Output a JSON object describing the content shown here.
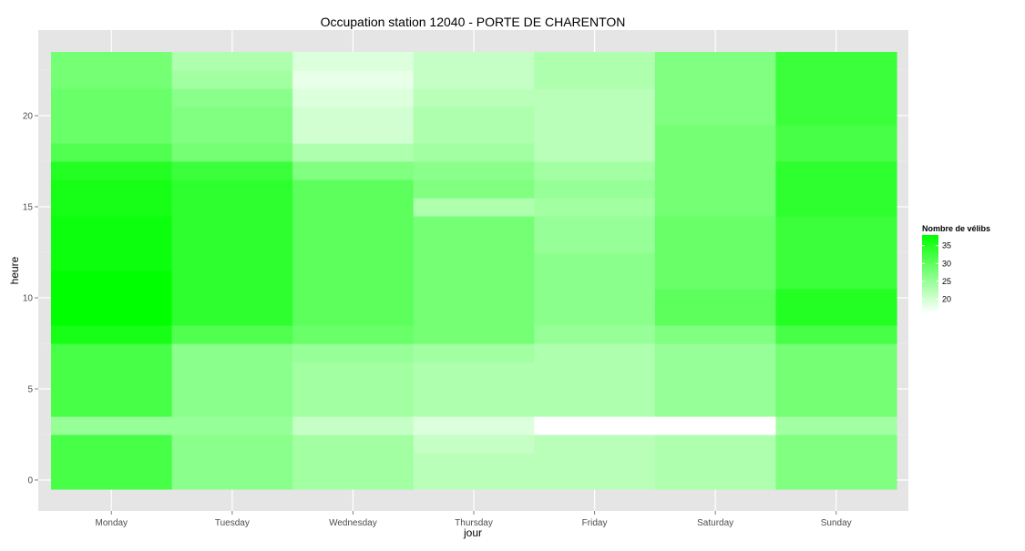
{
  "chart_data": {
    "type": "heatmap",
    "title": "Occupation station 12040 - PORTE DE CHARENTON",
    "xlabel": "jour",
    "ylabel": "heure",
    "x_categories": [
      "Monday",
      "Tuesday",
      "Wednesday",
      "Thursday",
      "Friday",
      "Saturday",
      "Sunday"
    ],
    "y_values": [
      0,
      1,
      2,
      3,
      4,
      5,
      6,
      7,
      8,
      9,
      10,
      11,
      12,
      13,
      14,
      15,
      16,
      17,
      18,
      19,
      20,
      21,
      22,
      23
    ],
    "y_ticks": [
      0,
      5,
      10,
      15,
      20
    ],
    "y_range": [
      -0.5,
      23.5
    ],
    "color_low": "#ffffff",
    "color_high": "#00ff00",
    "value_range": [
      16,
      38
    ],
    "values": [
      [
        32,
        32,
        32,
        25,
        32,
        32,
        32,
        32,
        36,
        38,
        38,
        38,
        37,
        37,
        37,
        36,
        36,
        35,
        31,
        29,
        29,
        29,
        28,
        28
      ],
      [
        26,
        26,
        26,
        25,
        26,
        26,
        26,
        26,
        31,
        34,
        34,
        34,
        34,
        34,
        34,
        34,
        34,
        33,
        28,
        27,
        27,
        26,
        24,
        23
      ],
      [
        24,
        24,
        24,
        21,
        24,
        24,
        24,
        25,
        29,
        30,
        30,
        30,
        30,
        30,
        30,
        30,
        30,
        27,
        23,
        20,
        20,
        19,
        18,
        19
      ],
      [
        22,
        22,
        21,
        19,
        23,
        23,
        23,
        24,
        28,
        28,
        28,
        28,
        28,
        28,
        28,
        23,
        27,
        26,
        24,
        23,
        23,
        22,
        21,
        21
      ],
      [
        22,
        22,
        22,
        16,
        23,
        23,
        23,
        23,
        25,
        26,
        26,
        26,
        26,
        25,
        25,
        24,
        25,
        24,
        22,
        22,
        22,
        22,
        23,
        23
      ],
      [
        23,
        23,
        23,
        16,
        25,
        25,
        25,
        25,
        27,
        30,
        30,
        29,
        29,
        29,
        29,
        28,
        28,
        28,
        28,
        28,
        27,
        27,
        27,
        27
      ],
      [
        27,
        27,
        27,
        24,
        28,
        28,
        28,
        28,
        32,
        35,
        35,
        33,
        33,
        33,
        33,
        34,
        34,
        34,
        32,
        32,
        33,
        33,
        33,
        33
      ]
    ]
  },
  "legend": {
    "title": "Nombre de vélibs",
    "ticks": [
      20,
      25,
      30,
      35
    ]
  }
}
